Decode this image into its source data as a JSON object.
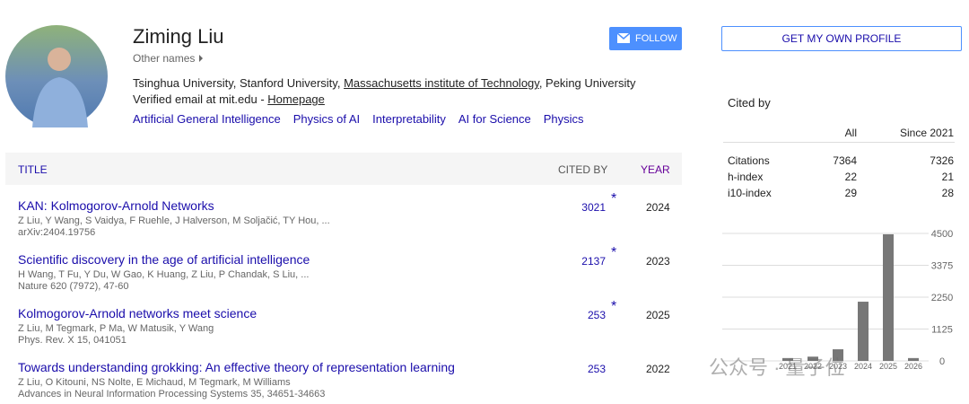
{
  "profile": {
    "name": "Ziming Liu",
    "other_names": "Other names",
    "affiliation": [
      "Tsinghua University, Stanford University, ",
      "Massachusetts institute of Technology",
      ", Peking University"
    ],
    "verified_email": "Verified email at mit.edu - ",
    "homepage": "Homepage",
    "interests": [
      "Artificial General Intelligence",
      "Physics of AI",
      "Interpretability",
      "AI for Science",
      "Physics"
    ],
    "follow_button": "FOLLOW"
  },
  "table": {
    "headers": {
      "title": "TITLE",
      "cited_by": "CITED BY",
      "year": "YEAR"
    },
    "rows": [
      {
        "title": "KAN: Kolmogorov-Arnold Networks",
        "authors": "Z Liu, Y Wang, S Vaidya, F Ruehle, J Halverson, M Soljačić, TY Hou, ...",
        "venue": "arXiv:2404.19756",
        "cited_by": 3021,
        "star": "*",
        "year": 2024
      },
      {
        "title": "Scientific discovery in the age of artificial intelligence",
        "authors": "H Wang, T Fu, Y Du, W Gao, K Huang, Z Liu, P Chandak, S Liu, ...",
        "venue": "Nature 620 (7972), 47-60",
        "cited_by": 2137,
        "star": "*",
        "year": 2023
      },
      {
        "title": "Kolmogorov-Arnold networks meet science",
        "authors": "Z Liu, M Tegmark, P Ma, W Matusik, Y Wang",
        "venue": "Phys. Rev. X 15, 041051",
        "cited_by": 253,
        "star": "*",
        "year": 2025
      },
      {
        "title": "Towards understanding grokking: An effective theory of representation learning",
        "authors": "Z Liu, O Kitouni, NS Nolte, E Michaud, M Tegmark, M Williams",
        "venue": "Advances in Neural Information Processing Systems 35, 34651-34663",
        "cited_by": 253,
        "year": 2022
      }
    ]
  },
  "sidebar": {
    "button": "GET MY OWN PROFILE",
    "cited_by_title": "Cited by",
    "columns": [
      "All",
      "Since 2021"
    ],
    "rows": [
      [
        "Citations",
        7364,
        7326
      ],
      [
        "h-index",
        22,
        21
      ],
      [
        "i10-index",
        29,
        28
      ]
    ]
  },
  "chart_data": {
    "type": "bar",
    "categories": [
      "2021",
      "2022",
      "2023",
      "2024",
      "2025",
      "2026"
    ],
    "values": [
      100,
      150,
      410,
      2090,
      4470,
      100
    ],
    "color": "#777777",
    "ylim": [
      0,
      4500
    ],
    "yticks": [
      0,
      1125,
      2250,
      3375,
      4500
    ],
    "grid": true
  },
  "watermark": "公众号 · 量子位"
}
